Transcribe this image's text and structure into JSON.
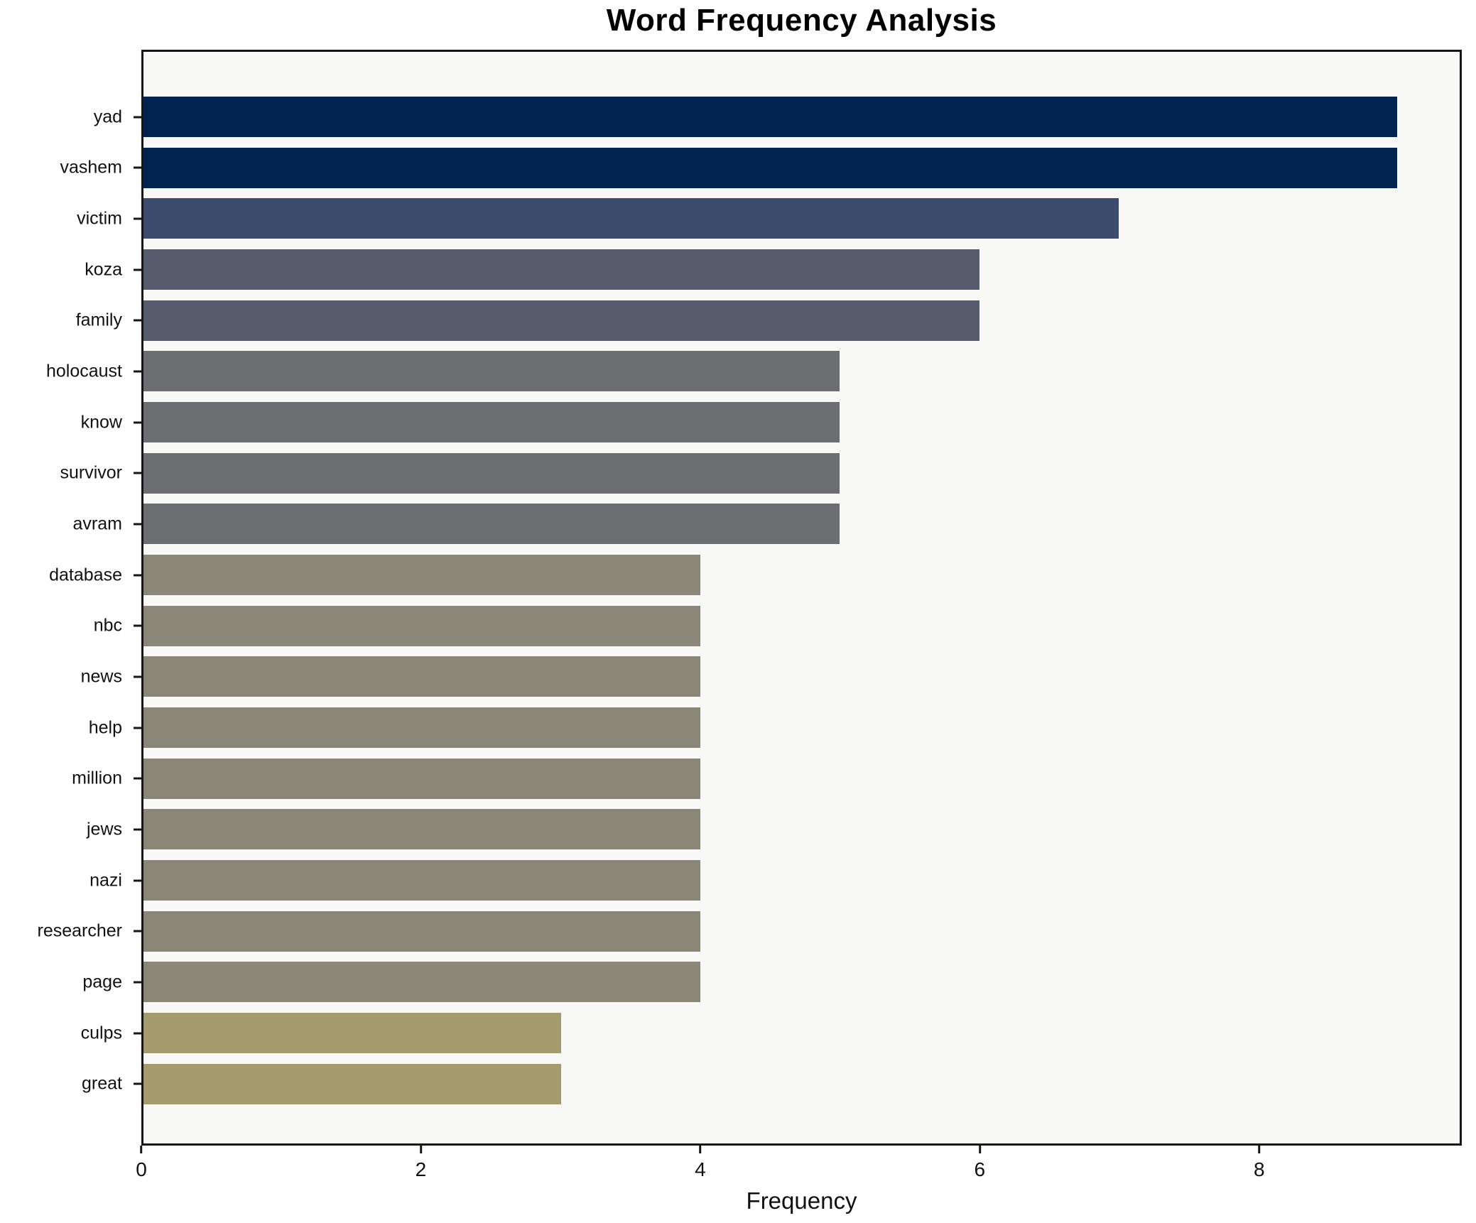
{
  "chart_data": {
    "type": "bar",
    "orientation": "horizontal",
    "title": "Word Frequency Analysis",
    "xlabel": "Frequency",
    "ylabel": "",
    "categories": [
      "yad",
      "vashem",
      "victim",
      "koza",
      "family",
      "holocaust",
      "know",
      "survivor",
      "avram",
      "database",
      "nbc",
      "news",
      "help",
      "million",
      "jews",
      "nazi",
      "researcher",
      "page",
      "culps",
      "great"
    ],
    "values": [
      9,
      9,
      7,
      6,
      6,
      5,
      5,
      5,
      5,
      4,
      4,
      4,
      4,
      4,
      4,
      4,
      4,
      4,
      3,
      3
    ],
    "xlim": [
      0,
      9.45
    ],
    "xticks": [
      0,
      2,
      4,
      6,
      8
    ],
    "grid": false,
    "legend": "none",
    "bar_colors": [
      "#012350",
      "#012350",
      "#3d4b6e",
      "#565d6d",
      "#565d6d",
      "#6c6e71",
      "#6c6e71",
      "#6c6e71",
      "#6c6e71",
      "#8a8779",
      "#8a8779",
      "#8a8779",
      "#8a8779",
      "#8a8779",
      "#8a8779",
      "#8a8779",
      "#8a8779",
      "#8a8779",
      "#a49b6c",
      "#a49b6c"
    ],
    "colors": {
      "plot_background": "#f8f8f7",
      "figure_background": "#ffffff",
      "spine": "#161616",
      "text": "#111111"
    }
  }
}
